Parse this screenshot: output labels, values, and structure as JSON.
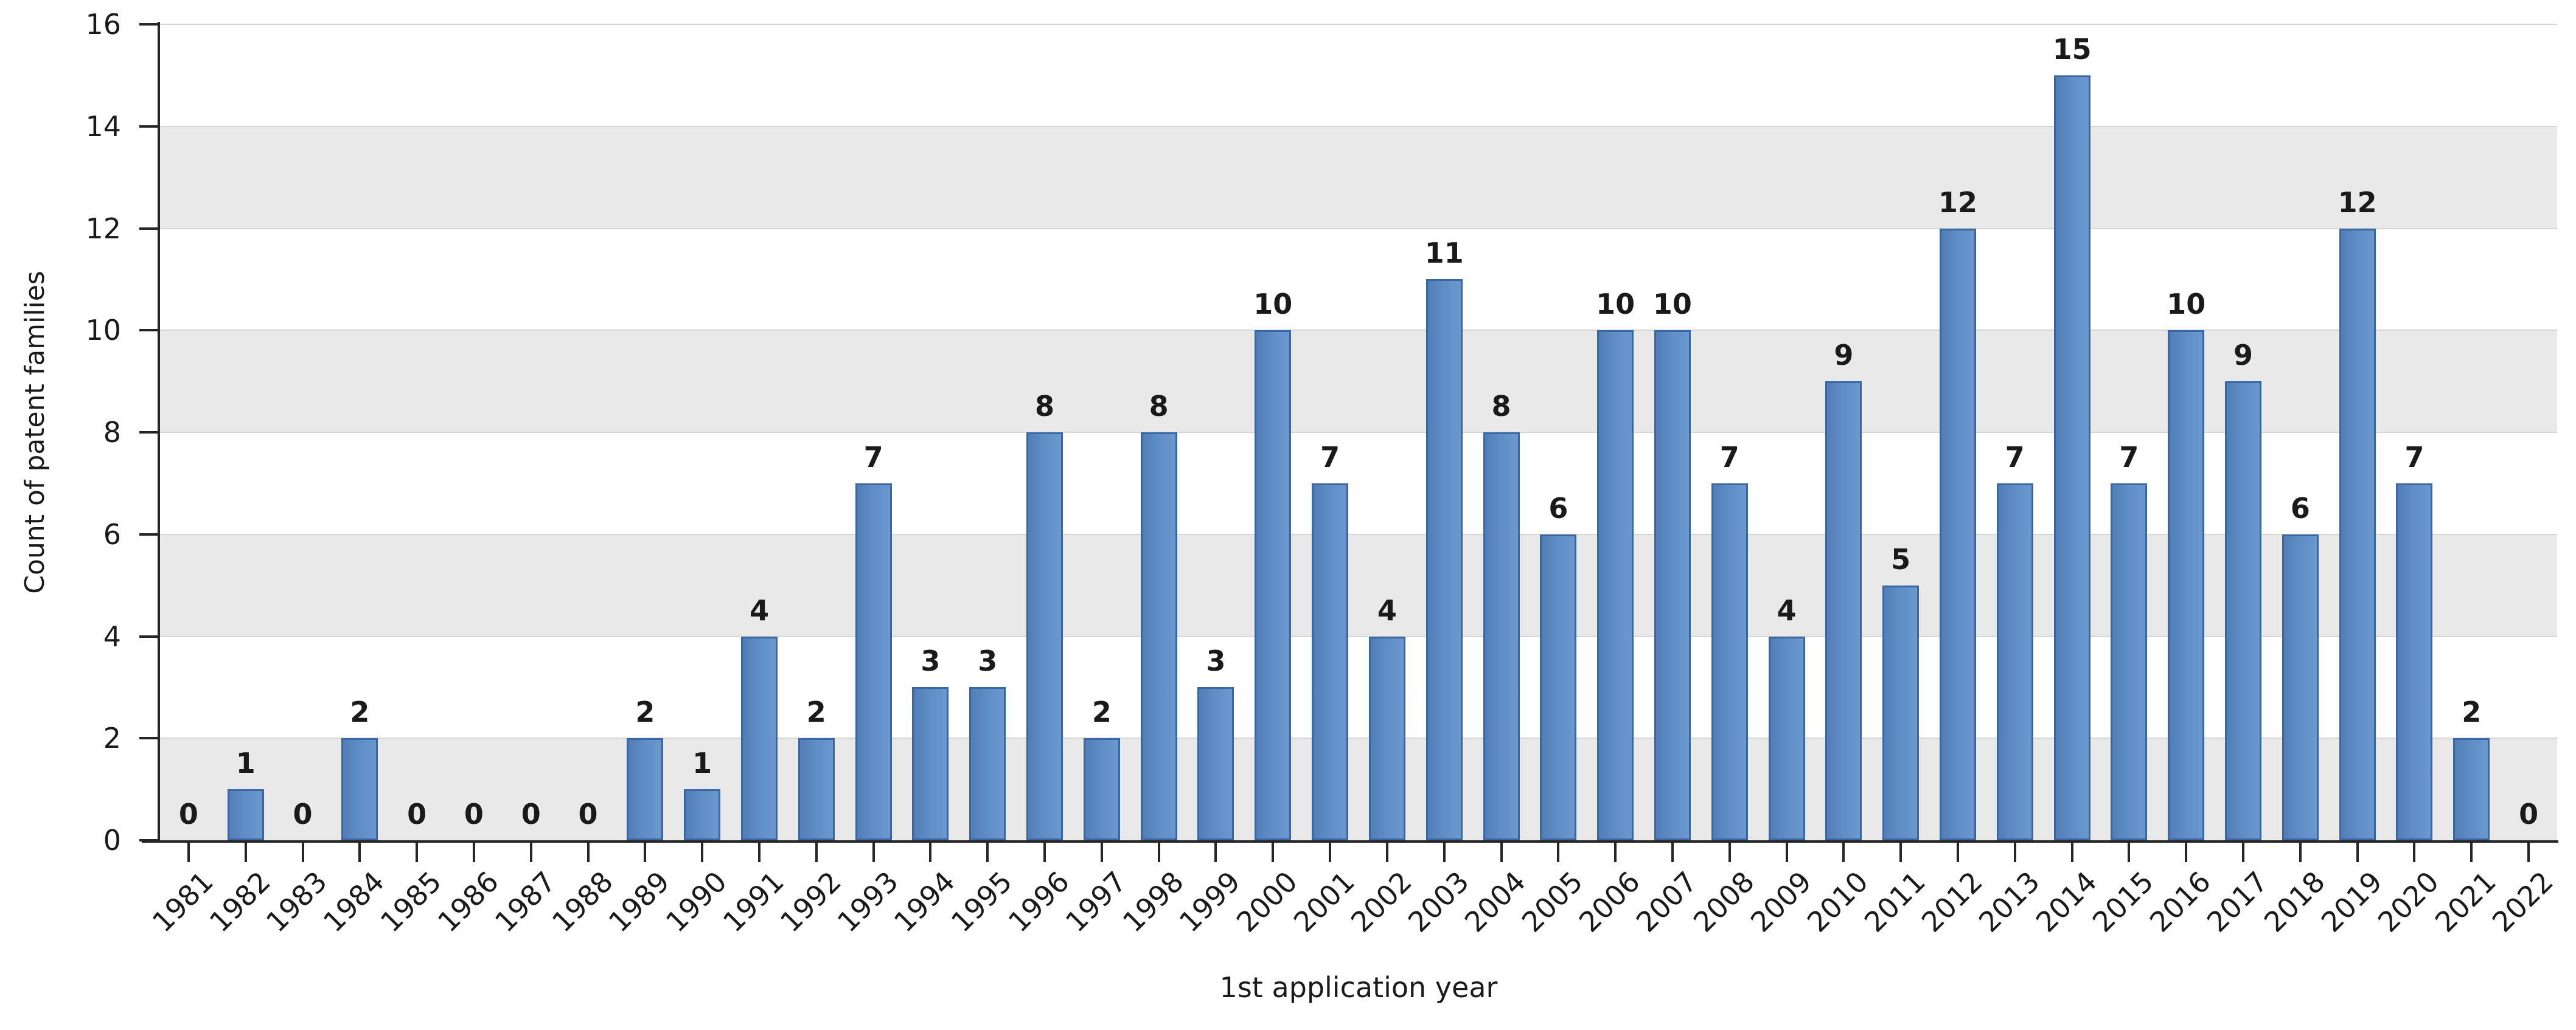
{
  "chart_data": {
    "type": "bar",
    "title": "",
    "xlabel": "1st application year",
    "ylabel": "Count of patent families",
    "categories": [
      "1981",
      "1982",
      "1983",
      "1984",
      "1985",
      "1986",
      "1987",
      "1988",
      "1989",
      "1990",
      "1991",
      "1992",
      "1993",
      "1994",
      "1995",
      "1996",
      "1997",
      "1998",
      "1999",
      "2000",
      "2001",
      "2002",
      "2003",
      "2004",
      "2005",
      "2006",
      "2007",
      "2008",
      "2009",
      "2010",
      "2011",
      "2012",
      "2013",
      "2014",
      "2015",
      "2016",
      "2017",
      "2018",
      "2019",
      "2020",
      "2021",
      "2022"
    ],
    "values": [
      0,
      1,
      0,
      2,
      0,
      0,
      0,
      0,
      2,
      1,
      4,
      2,
      7,
      3,
      3,
      8,
      2,
      8,
      3,
      10,
      7,
      4,
      11,
      8,
      6,
      10,
      10,
      7,
      4,
      9,
      5,
      12,
      7,
      15,
      7,
      10,
      9,
      6,
      12,
      7,
      2,
      0
    ],
    "bar_value_labels_shown": true,
    "ylim": [
      0,
      16
    ],
    "yticks": [
      0,
      2,
      4,
      6,
      8,
      10,
      12,
      14,
      16
    ],
    "legend": null,
    "grid": "alternating horizontal gray bands every 2 units with thin gridlines at even values",
    "colors": {
      "bar_fill": "#5E8CC4",
      "bar_fill_dark_edge": "#527EB7",
      "bar_fill_light_edge": "#6C98D0",
      "bar_border": "#3A67A1",
      "band": "#E9E9E9",
      "gridline": "#D5D5D5",
      "axis": "#262626",
      "text": "#1A1A1A",
      "background": "#FFFFFF"
    }
  }
}
